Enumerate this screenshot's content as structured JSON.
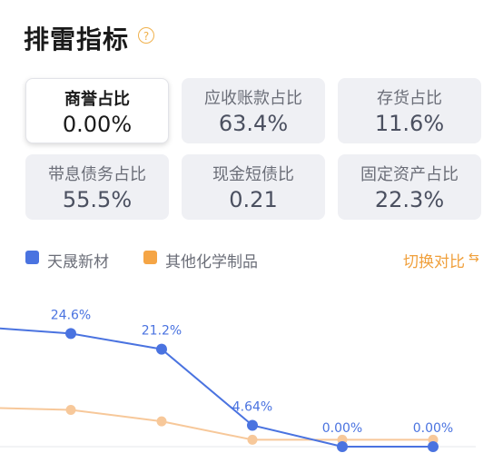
{
  "header": {
    "title": "排雷指标",
    "help_icon": "question-circle-icon",
    "help_glyph": "?"
  },
  "metrics": [
    {
      "label": "商誉占比",
      "value": "0.00%",
      "active": true
    },
    {
      "label": "应收账款占比",
      "value": "63.4%",
      "active": false
    },
    {
      "label": "存货占比",
      "value": "11.6%",
      "active": false
    },
    {
      "label": "带息债务占比",
      "value": "55.5%",
      "active": false
    },
    {
      "label": "现金短债比",
      "value": "0.21",
      "active": false
    },
    {
      "label": "固定资产占比",
      "value": "22.3%",
      "active": false
    }
  ],
  "legend": {
    "series_a": "天晟新材",
    "series_b": "其他化学制品",
    "color_a": "#4a73e0",
    "color_b": "#f5a545"
  },
  "switch": {
    "label": "切换对比",
    "icon": "toggle-compare-icon",
    "glyph": "⇆"
  },
  "chart_data": {
    "type": "line",
    "series": [
      {
        "name": "天晟新材",
        "values": [
          null,
          24.6,
          21.2,
          4.64,
          0.0,
          0.0
        ],
        "labels": [
          "",
          "24.6%",
          "21.2%",
          "4.64%",
          "0.00%",
          "0.00%"
        ]
      },
      {
        "name": "其他化学制品",
        "values": [
          null,
          8.0,
          5.5,
          1.5,
          1.5,
          1.5
        ]
      }
    ],
    "ylim": [
      0,
      30
    ]
  }
}
